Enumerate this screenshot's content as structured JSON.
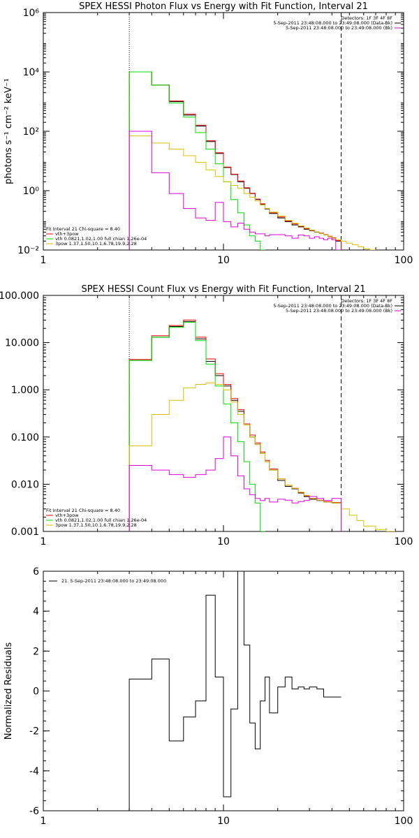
{
  "colors": {
    "black": "#000000",
    "red": "#ee0000",
    "green": "#00dd00",
    "gold": "#d8c000",
    "magenta": "#dd00dd"
  },
  "chart_data": [
    {
      "type": "line",
      "title": "SPEX HESSI Photon Flux vs Energy with Fit Function, Interval 21",
      "ylabel": "photons s⁻¹ cm⁻² keV⁻¹",
      "xscale": "log",
      "yscale": "log",
      "xlim": [
        1,
        100
      ],
      "ylim": [
        0.01,
        1000000
      ],
      "x_ticks": [
        "1",
        "10",
        "100"
      ],
      "y_ticks": [
        {
          "value": 0.01,
          "label": "10⁻²"
        },
        {
          "value": 1,
          "label": "10⁰"
        },
        {
          "value": 100,
          "label": "10²"
        },
        {
          "value": 10000,
          "label": "10⁴"
        },
        {
          "value": 1000000,
          "label": "10⁶"
        }
      ],
      "vlines": [
        {
          "x": 3,
          "style": "dotted"
        },
        {
          "x": 45,
          "style": "dashed"
        }
      ],
      "legend_top": [
        "Detectors: 1F 3F 4F 8F",
        "5-Sep-2011 23:48:08.000 to 23:49:08.000 (Data-Bk)",
        "5-Sep-2011 23:48:08.000 to 23:49:08.000 (Bk)"
      ],
      "legend_top_colors": [
        "black",
        "black",
        "magenta"
      ],
      "legend_bottom": [
        "Fit Interval 21   Chi-square = 8.40",
        "vth+3pow",
        "vth 0.0821,1.02,1.00  full chian 1.26e-04",
        "3pow 1.37,1.50,10.1,6.78,19.9,2.28"
      ],
      "legend_bottom_colors": [
        "none",
        "red",
        "green",
        "gold"
      ],
      "series": [
        {
          "color": "black",
          "edges": [
            3,
            3.5,
            4,
            4.5,
            5,
            5.5,
            6,
            6.5,
            7,
            7.5,
            8,
            8.5,
            9,
            9.5,
            10,
            11,
            12,
            13,
            14,
            15,
            16,
            17,
            18,
            20,
            22,
            24,
            26,
            28,
            30,
            32,
            34,
            36,
            38,
            40,
            42,
            45
          ],
          "values": [
            10000,
            10000,
            3600,
            3600,
            1000,
            1000,
            350,
            350,
            150,
            150,
            45,
            45,
            18,
            18,
            6,
            3.5,
            2,
            1.2,
            0.8,
            0.5,
            0.35,
            0.24,
            0.17,
            0.12,
            0.09,
            0.07,
            0.06,
            0.05,
            0.045,
            0.04,
            0.036,
            0.032,
            0.028,
            0.025,
            0.02
          ]
        },
        {
          "color": "red",
          "edges": [
            3,
            3.5,
            4,
            4.5,
            5,
            5.5,
            6,
            6.5,
            7,
            7.5,
            8,
            8.5,
            9,
            9.5,
            10,
            11,
            12,
            13,
            14,
            15,
            16,
            17,
            18,
            20,
            22,
            24,
            26,
            28,
            30,
            32,
            34,
            36,
            38,
            40,
            42,
            45
          ],
          "values": [
            10000,
            10000,
            3600,
            3600,
            1050,
            1050,
            380,
            380,
            160,
            160,
            48,
            48,
            19,
            19,
            6.2,
            3.6,
            2.1,
            1.25,
            0.82,
            0.52,
            0.36,
            0.25,
            0.18,
            0.13,
            0.095,
            0.075,
            0.063,
            0.053,
            0.046,
            0.041,
            0.037,
            0.033,
            0.029,
            0.026,
            0.021
          ]
        },
        {
          "color": "green",
          "edges": [
            3,
            3.5,
            4,
            4.5,
            5,
            5.5,
            6,
            6.5,
            7,
            7.5,
            8,
            8.5,
            9,
            9.5,
            10,
            11,
            12,
            13,
            14,
            15,
            16,
            17
          ],
          "values": [
            10000,
            10000,
            3600,
            3600,
            900,
            900,
            300,
            300,
            90,
            90,
            25,
            25,
            8,
            8,
            2,
            0.5,
            0.18,
            0.07,
            0.03,
            0.02,
            0.01
          ]
        },
        {
          "color": "gold",
          "edges": [
            3,
            3.5,
            4,
            4.5,
            5,
            5.5,
            6,
            6.5,
            7,
            7.5,
            8,
            8.5,
            9,
            9.5,
            10,
            11,
            12,
            13,
            14,
            15,
            16,
            17,
            18,
            20,
            22,
            24,
            26,
            28,
            30,
            32,
            34,
            36,
            38,
            40,
            42,
            45,
            48,
            52,
            56,
            60,
            65,
            70
          ],
          "values": [
            70,
            70,
            40,
            40,
            25,
            25,
            15,
            15,
            9,
            9,
            5,
            5,
            3,
            3,
            2,
            1.5,
            1.2,
            0.8,
            0.6,
            0.45,
            0.33,
            0.25,
            0.19,
            0.14,
            0.1,
            0.08,
            0.065,
            0.055,
            0.047,
            0.041,
            0.036,
            0.032,
            0.028,
            0.025,
            0.022,
            0.02,
            0.017,
            0.015,
            0.013,
            0.011,
            0.01
          ]
        },
        {
          "color": "magenta",
          "edges": [
            3,
            3.5,
            4,
            4.5,
            5,
            5.5,
            6,
            6.5,
            7,
            7.5,
            8,
            8.5,
            9,
            9.5,
            10,
            11,
            12,
            13,
            14,
            15,
            16,
            17,
            18,
            20,
            22,
            24,
            26,
            28,
            30,
            32,
            34,
            36,
            38,
            40,
            42,
            45
          ],
          "values": [
            100,
            100,
            4,
            4,
            0.8,
            0.8,
            0.25,
            0.25,
            0.12,
            0.12,
            0.1,
            0.1,
            0.4,
            0.4,
            0.09,
            0.06,
            0.08,
            0.05,
            0.04,
            0.035,
            0.035,
            0.03,
            0.033,
            0.033,
            0.03,
            0.025,
            0.032,
            0.03,
            0.025,
            0.028,
            0.025,
            0.022,
            0.025,
            0.022,
            0.01
          ]
        }
      ]
    },
    {
      "type": "line",
      "title": "SPEX HESSI Count Flux vs Energy with Fit Function, Interval 21",
      "xscale": "log",
      "yscale": "log",
      "xlim": [
        1,
        100
      ],
      "ylim": [
        0.001,
        100
      ],
      "x_ticks": [
        "1",
        "10",
        "100"
      ],
      "y_ticks": [
        {
          "value": 0.001,
          "label": "0.001"
        },
        {
          "value": 0.01,
          "label": "0.010"
        },
        {
          "value": 0.1,
          "label": "0.100"
        },
        {
          "value": 1,
          "label": "1.000"
        },
        {
          "value": 10,
          "label": "10.000"
        },
        {
          "value": 100,
          "label": "100.000"
        }
      ],
      "vlines": [
        {
          "x": 3,
          "style": "dotted"
        },
        {
          "x": 45,
          "style": "dashed"
        }
      ],
      "legend_top": [
        "Detectors: 1F 3F 4F 8F",
        "5-Sep-2011 23:48:08.000 to 23:49:08.000 (Data-Bk)",
        "5-Sep-2011 23:48:08.000 to 23:49:08.000 (Bk)"
      ],
      "legend_top_colors": [
        "black",
        "black",
        "magenta"
      ],
      "legend_bottom": [
        "Fit Interval 21   Chi-square = 8.40",
        "vth+3pow",
        "vth 0.0821,1.02,1.00  full chian 1.26e-04",
        "3pow 1.37,1.50,10.1,6.78,19.9,2.28"
      ],
      "legend_bottom_colors": [
        "none",
        "red",
        "green",
        "gold"
      ],
      "series": [
        {
          "color": "black",
          "edges": [
            3,
            4,
            5,
            6,
            7,
            8,
            9,
            10,
            11,
            12,
            13,
            14,
            15,
            16,
            17,
            18,
            20,
            22,
            24,
            26,
            28,
            30,
            33,
            36,
            40,
            45
          ],
          "values": [
            4.2,
            13,
            22,
            28,
            12,
            4,
            2,
            1.2,
            0.6,
            0.35,
            0.18,
            0.1,
            0.07,
            0.045,
            0.03,
            0.02,
            0.012,
            0.009,
            0.008,
            0.0065,
            0.0055,
            0.0048,
            0.0045,
            0.0042,
            0.004
          ]
        },
        {
          "color": "red",
          "edges": [
            3,
            4,
            5,
            6,
            7,
            8,
            9,
            10,
            11,
            12,
            13,
            14,
            15,
            16,
            17,
            18,
            20,
            22,
            24,
            26,
            28,
            30,
            33,
            36,
            40,
            45
          ],
          "values": [
            4.4,
            14,
            23,
            30,
            13,
            4.5,
            2.2,
            1.3,
            0.65,
            0.38,
            0.19,
            0.11,
            0.075,
            0.048,
            0.032,
            0.021,
            0.013,
            0.0095,
            0.0082,
            0.0067,
            0.0057,
            0.005,
            0.0046,
            0.0043,
            0.0041
          ]
        },
        {
          "color": "green",
          "edges": [
            3,
            4,
            5,
            6,
            7,
            8,
            9,
            10,
            11,
            12,
            13,
            14,
            15,
            16,
            17
          ],
          "values": [
            4.2,
            13,
            21,
            27,
            11,
            3.5,
            1.2,
            0.5,
            0.2,
            0.08,
            0.03,
            0.01,
            0.004,
            0.001
          ]
        },
        {
          "color": "gold",
          "edges": [
            3,
            4,
            5,
            6,
            7,
            8,
            9,
            10,
            11,
            12,
            13,
            14,
            15,
            16,
            17,
            18,
            20,
            22,
            24,
            26,
            28,
            30,
            33,
            36,
            40,
            45,
            50,
            55,
            60,
            70,
            80,
            90
          ],
          "values": [
            0.065,
            0.3,
            0.6,
            1.1,
            1.3,
            1.4,
            1.3,
            1,
            0.55,
            0.3,
            0.18,
            0.1,
            0.07,
            0.045,
            0.03,
            0.02,
            0.013,
            0.0095,
            0.0082,
            0.0068,
            0.0058,
            0.005,
            0.0046,
            0.0042,
            0.004,
            0.003,
            0.0022,
            0.0017,
            0.0013,
            0.0011,
            0.001
          ]
        },
        {
          "color": "magenta",
          "edges": [
            3,
            4,
            5,
            6,
            7,
            8,
            9,
            10,
            11,
            12,
            13,
            14,
            15,
            16,
            17,
            18,
            20,
            22,
            24,
            26,
            28,
            30,
            33,
            36,
            40,
            45
          ],
          "values": [
            0.025,
            0.02,
            0.016,
            0.014,
            0.016,
            0.02,
            0.035,
            0.1,
            0.04,
            0.015,
            0.008,
            0.006,
            0.005,
            0.0045,
            0.005,
            0.0042,
            0.0048,
            0.0046,
            0.004,
            0.0043,
            0.0045,
            0.0055,
            0.005,
            0.0045,
            0.005
          ]
        }
      ]
    },
    {
      "type": "line",
      "ylabel": "Normalized Residuals",
      "xscale": "log",
      "yscale": "linear",
      "xlim": [
        1,
        100
      ],
      "ylim": [
        -6,
        6
      ],
      "x_ticks": [
        "1",
        "10",
        "100"
      ],
      "y_ticks": [
        {
          "value": -6,
          "label": "-6"
        },
        {
          "value": -4,
          "label": "-4"
        },
        {
          "value": -2,
          "label": "-2"
        },
        {
          "value": 0,
          "label": "0"
        },
        {
          "value": 2,
          "label": "2"
        },
        {
          "value": 4,
          "label": "4"
        },
        {
          "value": 6,
          "label": "6"
        }
      ],
      "legend_top": [
        "21.  5-Sep-2011 23:48:08.000 to 23:49:08.000"
      ],
      "series": [
        {
          "color": "black",
          "edges": [
            3,
            4,
            5,
            6,
            7,
            8,
            9,
            10,
            11,
            12,
            13,
            14,
            15,
            16,
            17,
            18,
            20,
            22,
            24,
            26,
            28,
            30,
            33,
            36,
            40,
            45
          ],
          "values": [
            0.6,
            1.6,
            -2.5,
            -1.3,
            -0.5,
            4.8,
            0.7,
            -5.3,
            -0.9,
            6,
            2.3,
            -1.6,
            -2.9,
            -0.5,
            0.7,
            -1.1,
            0.2,
            0.7,
            0.1,
            0.2,
            0.1,
            0.2,
            0.1,
            -0.3,
            -0.3
          ]
        }
      ]
    }
  ]
}
